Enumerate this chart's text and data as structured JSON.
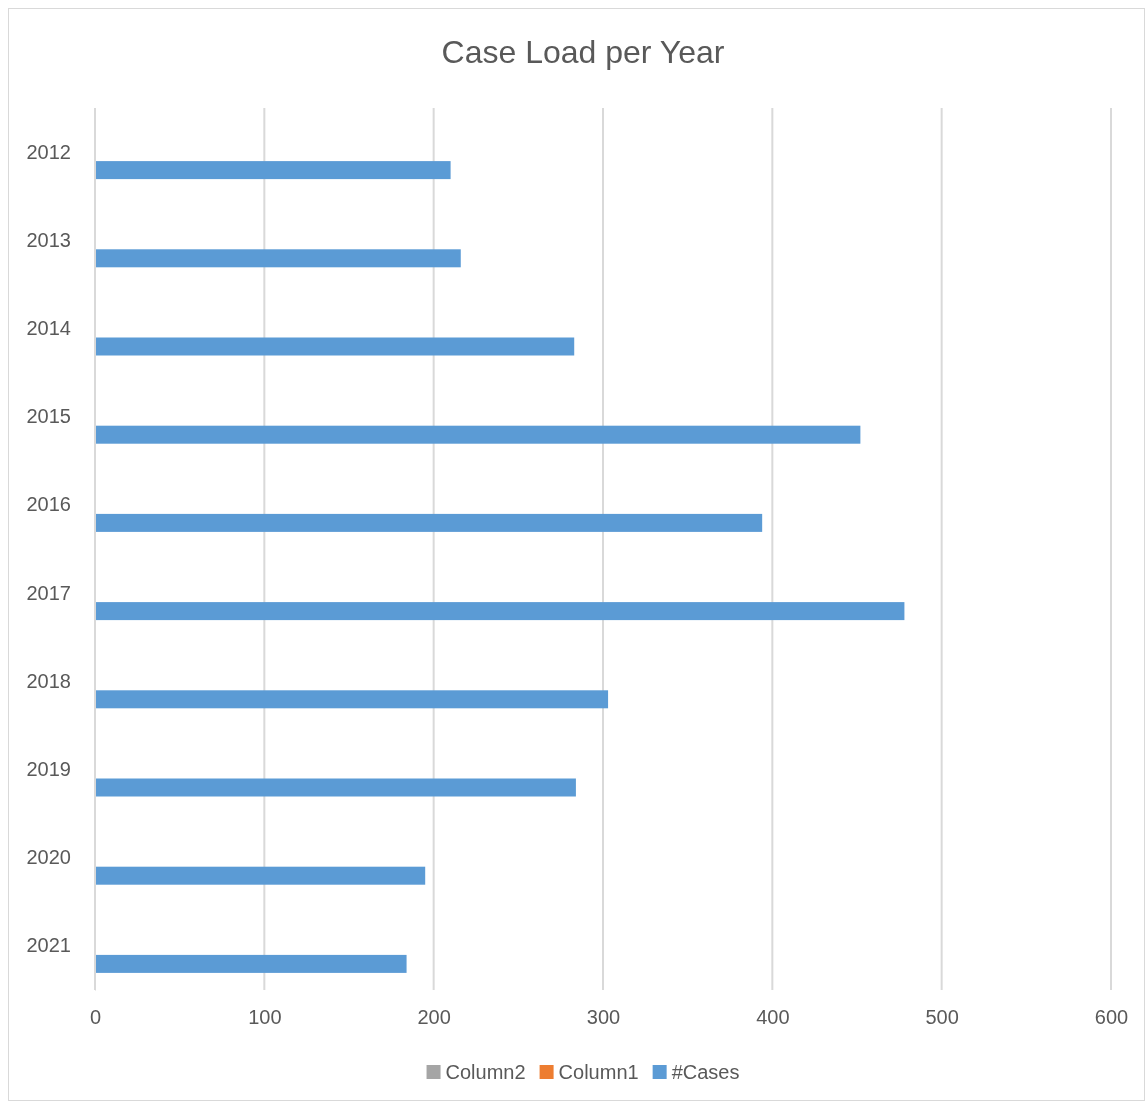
{
  "chart_data": {
    "type": "bar",
    "orientation": "horizontal",
    "title": "Case Load per Year",
    "categories": [
      "2012",
      "2013",
      "2014",
      "2015",
      "2016",
      "2017",
      "2018",
      "2019",
      "2020",
      "2021"
    ],
    "series": [
      {
        "name": "Column2",
        "color": "#a5a5a5",
        "values": [
          null,
          null,
          null,
          null,
          null,
          null,
          null,
          null,
          null,
          null
        ]
      },
      {
        "name": "Column1",
        "color": "#ed7d31",
        "values": [
          null,
          null,
          null,
          null,
          null,
          null,
          null,
          null,
          null,
          null
        ]
      },
      {
        "name": "#Cases",
        "color": "#5b9bd5",
        "values": [
          210,
          216,
          283,
          452,
          394,
          478,
          303,
          284,
          195,
          184
        ]
      }
    ],
    "xlim": [
      0,
      600
    ],
    "xticks": [
      0,
      100,
      200,
      300,
      400,
      500,
      600
    ],
    "grid": "x",
    "legend": "bottom"
  }
}
